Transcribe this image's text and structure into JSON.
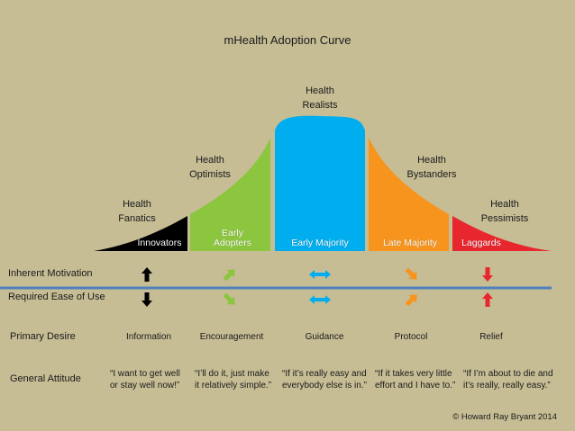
{
  "title": "mHealth Adoption Curve",
  "segments": [
    {
      "id": "innovators",
      "label": "Innovators",
      "group": "Health\nFanatics",
      "color": "#000000",
      "inherent_motivation": "up-arrow",
      "ease_of_use": "down-arrow",
      "primary_desire": "Information",
      "general_attitude": "“I want to get well\nor stay well now!”"
    },
    {
      "id": "early-adopters",
      "label": "Early\nAdopters",
      "group": "Health\nOptimists",
      "color": "#8cc63f",
      "inherent_motivation": "up-right-arrow",
      "ease_of_use": "down-right-arrow",
      "primary_desire": "Encouragement",
      "general_attitude": "“I’ll do it, just make\nit relatively simple.”"
    },
    {
      "id": "early-majority",
      "label": "Early Majority",
      "group": "Health\nRealists",
      "color": "#00aeef",
      "inherent_motivation": "left-right-arrow",
      "ease_of_use": "left-right-arrow",
      "primary_desire": "Guidance",
      "general_attitude": "“If it’s really easy and\neverybody else is in.”"
    },
    {
      "id": "late-majority",
      "label": "Late Majority",
      "group": "Health\nBystanders",
      "color": "#f7941d",
      "inherent_motivation": "down-right-arrow",
      "ease_of_use": "up-right-arrow",
      "primary_desire": "Protocol",
      "general_attitude": "“If it takes very little\neffort and I have to.”"
    },
    {
      "id": "laggards",
      "label": "Laggards",
      "group": "Health\nPessimists",
      "color": "#e8262d",
      "inherent_motivation": "down-arrow",
      "ease_of_use": "up-arrow",
      "primary_desire": "Relief",
      "general_attitude": "“If I’m about to die and\nit’s really, really easy.”"
    }
  ],
  "rows": {
    "inherent_motivation": "Inherent Motivation",
    "required_ease_of_use": "Required Ease of Use",
    "primary_desire": "Primary Desire",
    "general_attitude": "General Attitude"
  },
  "divider_color": "#4f81bd",
  "copyright": "© Howard Ray Bryant 2014"
}
